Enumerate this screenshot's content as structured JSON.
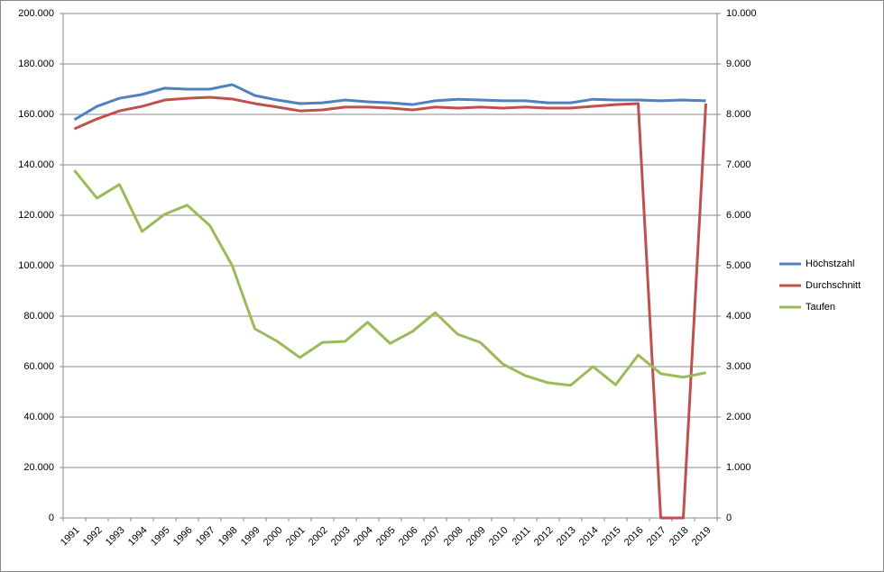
{
  "chart_data": {
    "type": "line",
    "categories": [
      "1991",
      "1992",
      "1993",
      "1994",
      "1995",
      "1996",
      "1997",
      "1998",
      "1999",
      "2000",
      "2001",
      "2002",
      "2003",
      "2004",
      "2005",
      "2006",
      "2007",
      "2008",
      "2009",
      "2010",
      "2011",
      "2012",
      "2013",
      "2014",
      "2015",
      "2016",
      "2017",
      "2018",
      "2019"
    ],
    "series": [
      {
        "name": "Höchstzahl",
        "color": "#4f81bd",
        "values": [
          157900,
          163200,
          166400,
          167900,
          170400,
          170000,
          170000,
          171800,
          167500,
          165700,
          164300,
          164600,
          165700,
          165000,
          164600,
          163900,
          165400,
          166000,
          165700,
          165400,
          165400,
          164600,
          164600,
          166000,
          165700,
          165700,
          165400,
          165700,
          165400
        ]
      },
      {
        "name": "Durchschnitt",
        "color": "#c0504d",
        "values": [
          154300,
          158200,
          161400,
          163200,
          165700,
          166400,
          166800,
          166100,
          164300,
          162900,
          161400,
          161800,
          162900,
          162900,
          162500,
          161800,
          162900,
          162500,
          162900,
          162500,
          162900,
          162500,
          162500,
          163200,
          163900,
          164300,
          0,
          0,
          164300
        ]
      },
      {
        "name": "Taufen",
        "color": "#9bbb59",
        "axis": "y2",
        "values": [
          6890,
          6340,
          6610,
          5680,
          6020,
          6200,
          5800,
          5000,
          3750,
          3500,
          3180,
          3480,
          3500,
          3880,
          3460,
          3700,
          4070,
          3640,
          3480,
          3050,
          2820,
          2680,
          2630,
          3000,
          2640,
          3230,
          2860,
          2790,
          2880
        ]
      }
    ],
    "ylim": [
      0,
      200000
    ],
    "yticks": [
      0,
      {
        "value": 20000,
        "label": "20.000"
      },
      {
        "value": 40000,
        "label": "40.000"
      },
      {
        "value": 60000,
        "label": "60.000"
      },
      {
        "value": 80000,
        "label": "80.000"
      },
      {
        "value": 100000,
        "label": "100.000"
      },
      {
        "value": 120000,
        "label": "120.000"
      },
      {
        "value": 140000,
        "label": "140.000"
      },
      {
        "value": 160000,
        "label": "160.000"
      },
      {
        "value": 180000,
        "label": "180.000"
      },
      {
        "value": 200000,
        "label": "200.000"
      }
    ],
    "y2lim": [
      0,
      10000
    ],
    "y2ticks": [
      0,
      {
        "value": 1000,
        "label": "1.000"
      },
      {
        "value": 2000,
        "label": "2.000"
      },
      {
        "value": 3000,
        "label": "3.000"
      },
      {
        "value": 4000,
        "label": "4.000"
      },
      {
        "value": 5000,
        "label": "5.000"
      },
      {
        "value": 6000,
        "label": "6.000"
      },
      {
        "value": 7000,
        "label": "7.000"
      },
      {
        "value": 8000,
        "label": "8.000"
      },
      {
        "value": 9000,
        "label": "9.000"
      },
      {
        "value": 10000,
        "label": "10.000"
      }
    ],
    "grid": true,
    "legend": "right"
  }
}
